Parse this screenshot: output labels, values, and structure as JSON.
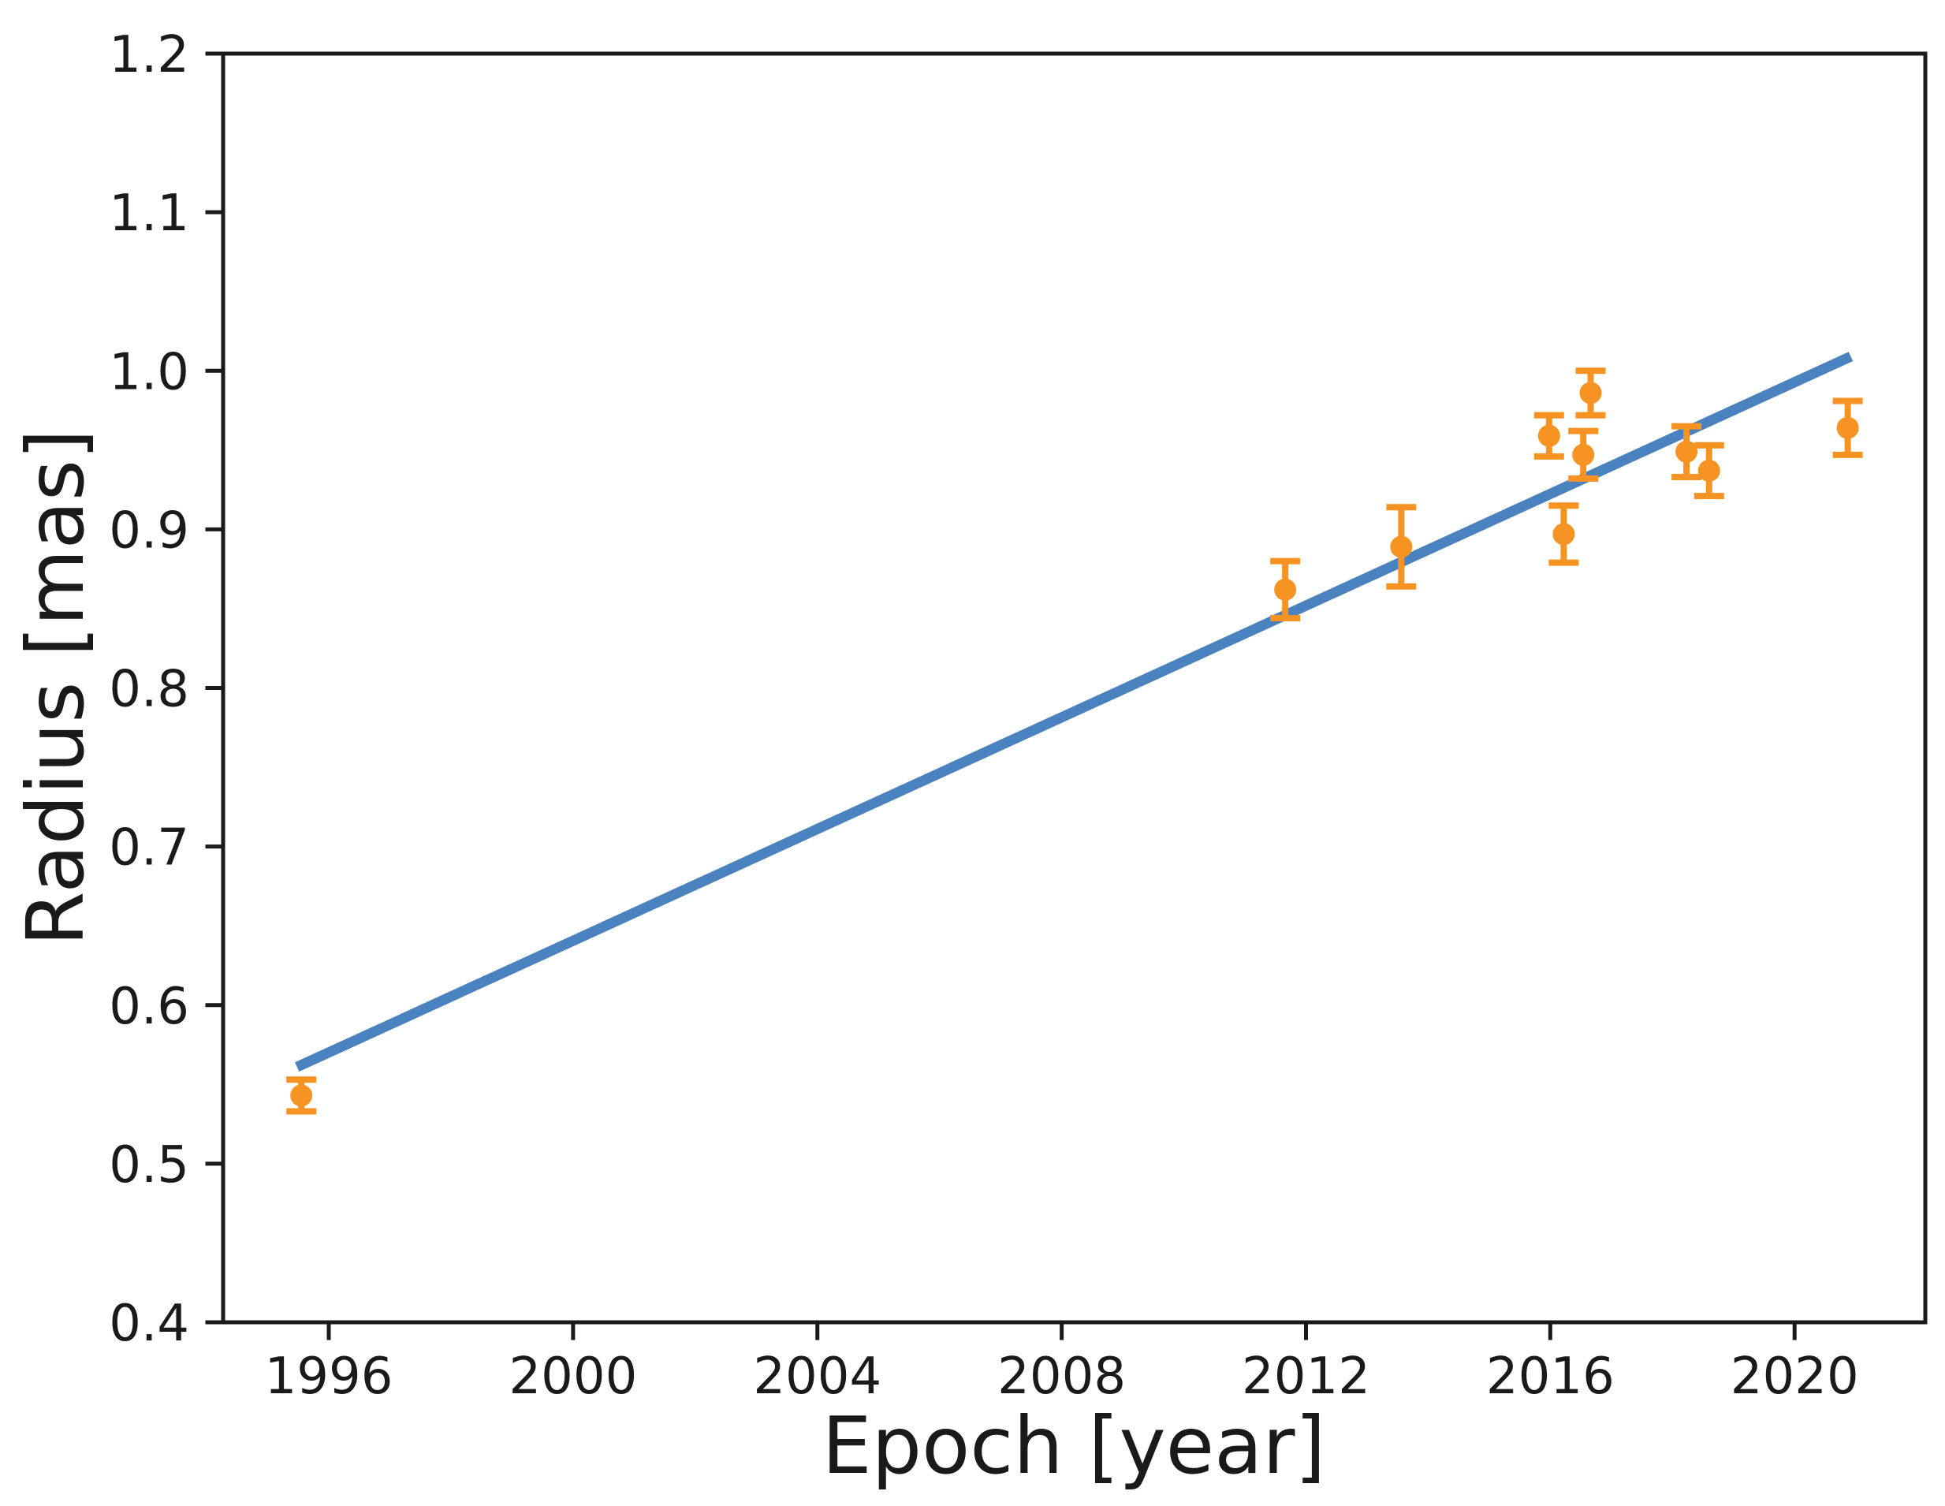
{
  "chart_data": {
    "type": "scatter",
    "title": "",
    "xlabel": "Epoch [year]",
    "ylabel": "Radius [mas]",
    "xlim": [
      1994.27,
      2022.14
    ],
    "ylim": [
      0.4,
      1.2
    ],
    "x_ticks": [
      1996,
      2000,
      2004,
      2008,
      2012,
      2016,
      2020
    ],
    "y_ticks": [
      0.4,
      0.5,
      0.6,
      0.7,
      0.8,
      0.9,
      1.0,
      1.1,
      1.2
    ],
    "grid": false,
    "legend": "none",
    "frame": "full-box",
    "colors": {
      "points": "#f69322",
      "fit_line": "#4a82c0",
      "axes": "#1a1a1a"
    },
    "series": [
      {
        "name": "fit-line",
        "type": "line",
        "color": "#4a82c0",
        "x": [
          1995.48,
          2020.92
        ],
        "y": [
          0.561,
          1.009
        ]
      },
      {
        "name": "measured-radius",
        "type": "scatter-errorbar",
        "color": "#f69322",
        "points": [
          {
            "x": 1995.55,
            "y": 0.543,
            "err": 0.01
          },
          {
            "x": 2011.66,
            "y": 0.862,
            "err": 0.018
          },
          {
            "x": 2013.56,
            "y": 0.889,
            "err": 0.025
          },
          {
            "x": 2015.98,
            "y": 0.959,
            "err": 0.013
          },
          {
            "x": 2016.22,
            "y": 0.897,
            "err": 0.018
          },
          {
            "x": 2016.54,
            "y": 0.947,
            "err": 0.015
          },
          {
            "x": 2016.66,
            "y": 0.986,
            "err": 0.014
          },
          {
            "x": 2018.23,
            "y": 0.949,
            "err": 0.016
          },
          {
            "x": 2018.6,
            "y": 0.937,
            "err": 0.016
          },
          {
            "x": 2020.87,
            "y": 0.964,
            "err": 0.017
          }
        ]
      }
    ]
  }
}
